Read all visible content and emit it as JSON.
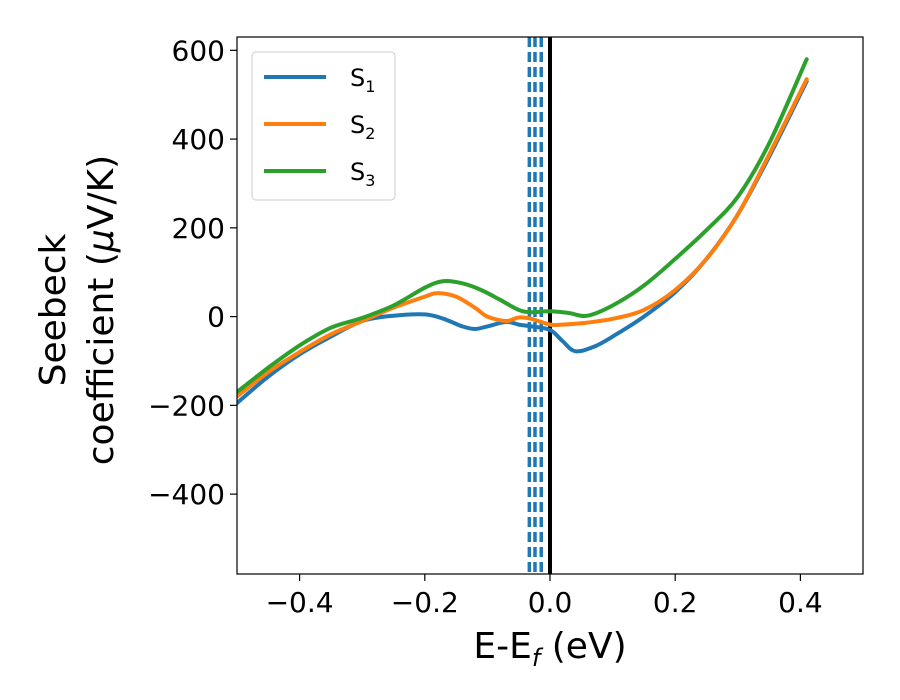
{
  "chart_data": {
    "type": "line",
    "xlabel": "E-E",
    "xlabel_sub": "f",
    "xlabel_unit": " (eV)",
    "ylabel_line1": "Seebeck",
    "ylabel_line2": "coefficient  (",
    "ylabel_mu": "μ",
    "ylabel_unit": "V/K)",
    "xlim": [
      -0.5,
      0.5
    ],
    "ylim": [
      -580,
      630
    ],
    "xticks": [
      -0.4,
      -0.2,
      0.0,
      0.2,
      0.4
    ],
    "xtick_labels": [
      "−0.4",
      "−0.2",
      "0.0",
      "0.2",
      "0.4"
    ],
    "yticks": [
      -400,
      -200,
      0,
      200,
      400,
      600
    ],
    "ytick_labels": [
      "−400",
      "−200",
      "0",
      "200",
      "400",
      "600"
    ],
    "grid": false,
    "legend_position": "top-left",
    "vertical_lines": [
      {
        "x": 0.0,
        "style": "solid",
        "color": "#000000"
      },
      {
        "x": -0.033,
        "style": "dashed",
        "color": "#1f77b4"
      },
      {
        "x": -0.024,
        "style": "dashed",
        "color": "#1f77b4"
      },
      {
        "x": -0.014,
        "style": "dashed",
        "color": "#1f77b4"
      }
    ],
    "series": [
      {
        "name": "S",
        "sub": "1",
        "color": "#1f77b4",
        "x": [
          -0.5,
          -0.45,
          -0.4,
          -0.35,
          -0.3,
          -0.25,
          -0.2,
          -0.17,
          -0.14,
          -0.12,
          -0.1,
          -0.07,
          -0.05,
          -0.03,
          0.0,
          0.02,
          0.04,
          0.07,
          0.1,
          0.15,
          0.2,
          0.25,
          0.3,
          0.35,
          0.41
        ],
        "y": [
          -195,
          -135,
          -85,
          -45,
          -10,
          2,
          5,
          -5,
          -22,
          -28,
          -22,
          -12,
          -18,
          -22,
          -30,
          -55,
          -78,
          -68,
          -45,
          0,
          55,
          130,
          230,
          360,
          530
        ]
      },
      {
        "name": "S",
        "sub": "2",
        "color": "#ff7f0e",
        "x": [
          -0.5,
          -0.45,
          -0.4,
          -0.35,
          -0.3,
          -0.25,
          -0.2,
          -0.18,
          -0.15,
          -0.12,
          -0.1,
          -0.07,
          -0.05,
          -0.03,
          0.0,
          0.02,
          0.05,
          0.1,
          0.15,
          0.2,
          0.25,
          0.3,
          0.35,
          0.41
        ],
        "y": [
          -180,
          -125,
          -80,
          -40,
          -10,
          20,
          45,
          53,
          45,
          20,
          0,
          -10,
          -2,
          -5,
          -18,
          -18,
          -15,
          -5,
          15,
          60,
          130,
          230,
          365,
          535
        ]
      },
      {
        "name": "S",
        "sub": "3",
        "color": "#2ca02c",
        "x": [
          -0.5,
          -0.45,
          -0.4,
          -0.35,
          -0.3,
          -0.25,
          -0.2,
          -0.17,
          -0.14,
          -0.11,
          -0.08,
          -0.05,
          -0.03,
          0.0,
          0.03,
          0.06,
          0.1,
          0.15,
          0.2,
          0.25,
          0.3,
          0.35,
          0.41
        ],
        "y": [
          -170,
          -115,
          -65,
          -25,
          -3,
          25,
          65,
          80,
          75,
          60,
          38,
          15,
          10,
          12,
          8,
          2,
          25,
          70,
          130,
          195,
          270,
          390,
          580
        ]
      }
    ]
  }
}
